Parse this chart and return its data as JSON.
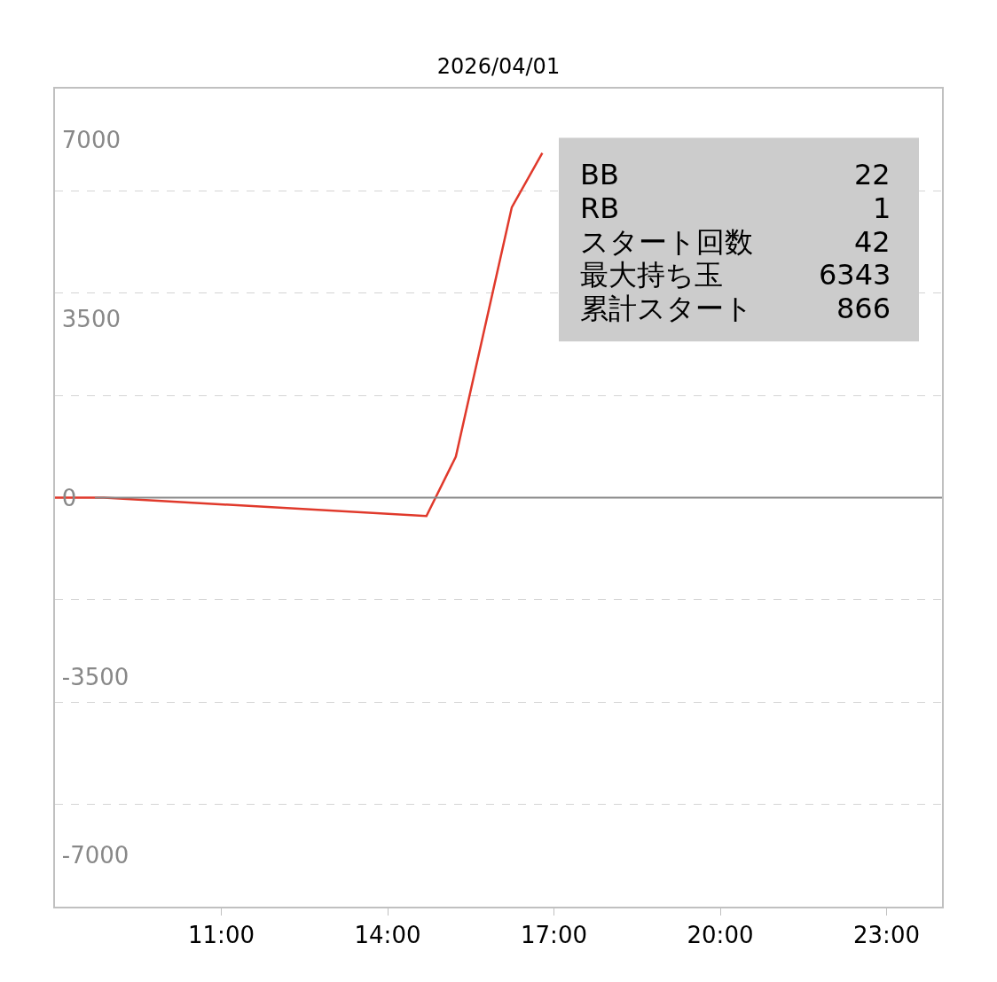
{
  "chart_data": {
    "type": "line",
    "title": "2026/04/01",
    "x": [
      8,
      8.88,
      14.7,
      15.23,
      16.24,
      16.79
    ],
    "series": [
      {
        "color": "#e0392b",
        "values": [
          0,
          0,
          -360,
          800,
          5680,
          6740
        ]
      }
    ],
    "xlim": [
      8,
      24
    ],
    "xticks": [
      {
        "value": 11,
        "label": "11:00"
      },
      {
        "value": 14,
        "label": "14:00"
      },
      {
        "value": 17,
        "label": "17:00"
      },
      {
        "value": 20,
        "label": "20:00"
      },
      {
        "value": 23,
        "label": "23:00"
      }
    ],
    "ylim": [
      -8000,
      8000
    ],
    "yticks": [
      -7000,
      -3500,
      0,
      3500,
      7000,
      {
        "value": -6000,
        "label": null
      },
      {
        "value": -4000,
        "label": null
      },
      {
        "value": -2000,
        "label": null
      },
      {
        "value": 2000,
        "label": null
      },
      {
        "value": 4000,
        "label": null
      },
      {
        "value": 6000,
        "label": null
      }
    ],
    "grid": "y",
    "marker": "none",
    "line_style": "solid",
    "ref_lines": [
      {
        "axis": "y",
        "value": 0,
        "color": "#888888"
      }
    ],
    "annotations": [
      "BB 22",
      "RB 1",
      "スタート回数 42",
      "最大持ち玉 6343",
      "累計スタート 866"
    ]
  }
}
